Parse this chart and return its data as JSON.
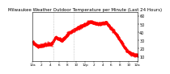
{
  "title": "Milwaukee Weather Outdoor Temperature per Minute (Last 24 Hours)",
  "title_fontsize": 4.0,
  "line_color": "#ff0000",
  "background_color": "#ffffff",
  "ylim": [
    5,
    65
  ],
  "yticks": [
    10,
    20,
    30,
    40,
    50,
    60
  ],
  "num_points": 1440,
  "vline_positions": [
    0.195,
    0.39
  ],
  "vline_color": "#999999",
  "xtick_labels": [
    "12a",
    "2",
    "4",
    "6",
    "8",
    "10",
    "12p",
    "2",
    "4",
    "6",
    "8",
    "10",
    "12a"
  ],
  "tick_fontsize": 3.0,
  "ytick_fontsize": 3.5,
  "line_width": 0.5,
  "marker": ".",
  "marker_size": 0.8
}
